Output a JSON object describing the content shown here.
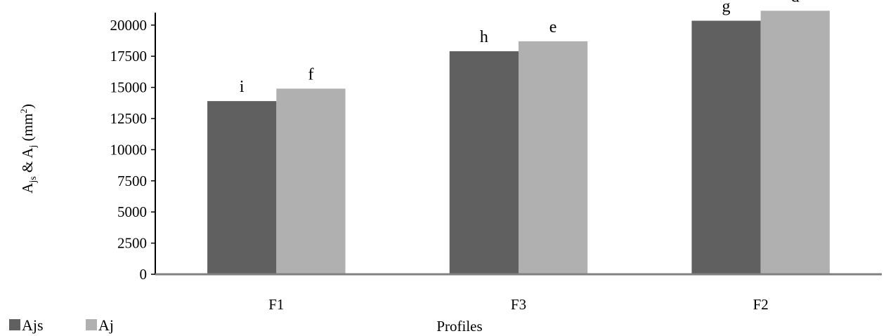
{
  "chart_data": {
    "type": "bar",
    "categories": [
      "F1",
      "F3",
      "F2"
    ],
    "series": [
      {
        "name": "Ajs",
        "values": [
          13900,
          17900,
          20350
        ],
        "labels": [
          "i",
          "h",
          "g"
        ],
        "color": "#606060"
      },
      {
        "name": "Aj",
        "values": [
          14900,
          18700,
          21150
        ],
        "labels": [
          "f",
          "e",
          "d"
        ],
        "color": "#b0b0b0"
      }
    ],
    "xlabel": "Profiles",
    "ylabel": {
      "main1": "A",
      "sub1": "js",
      "mid": " & A",
      "sub2": "j",
      "unit_open": " (mm",
      "sup": "2",
      "unit_close": ")"
    },
    "ylim": [
      0,
      21000
    ],
    "yticks": [
      0,
      2500,
      5000,
      7500,
      10000,
      12500,
      15000,
      17500,
      20000
    ],
    "grid": false,
    "legend_position": "bottom-left"
  }
}
